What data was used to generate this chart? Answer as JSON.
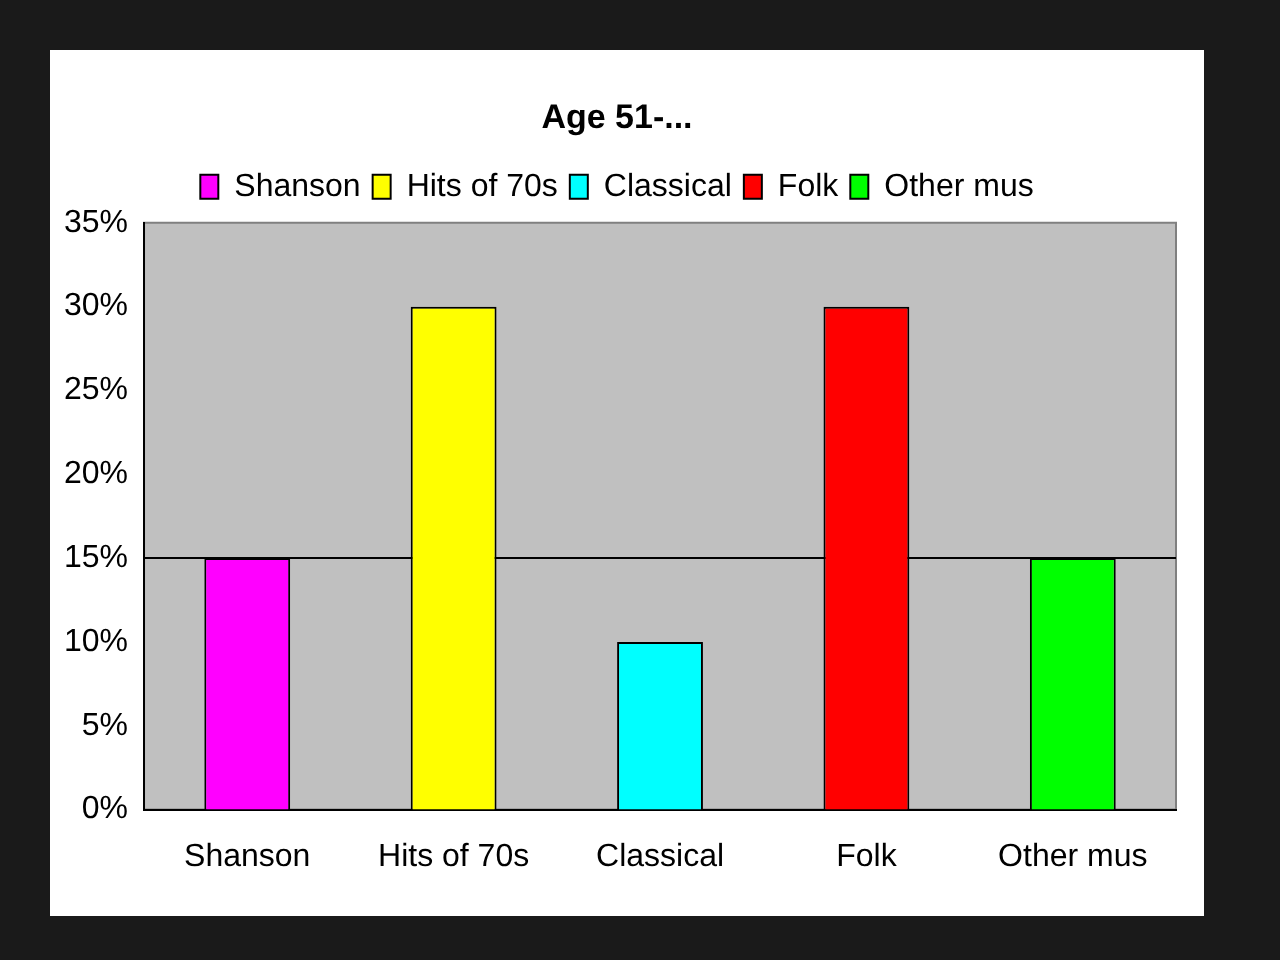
{
  "chart_data": {
    "type": "bar",
    "title": "Age 51-...",
    "categories": [
      "Shanson",
      "Hits of 70s",
      "Classical",
      "Folk",
      "Other mus"
    ],
    "series": [
      {
        "name": "Shanson",
        "color": "#ff00ff",
        "values": [
          15,
          null,
          null,
          null,
          null
        ]
      },
      {
        "name": "Hits of 70s",
        "color": "#ffff00",
        "values": [
          null,
          30,
          null,
          null,
          null
        ]
      },
      {
        "name": "Classical",
        "color": "#00ffff",
        "values": [
          null,
          null,
          10,
          null,
          null
        ]
      },
      {
        "name": "Folk",
        "color": "#ff0000",
        "values": [
          null,
          null,
          null,
          30,
          null
        ]
      },
      {
        "name": "Other mus",
        "color": "#00ff00",
        "values": [
          null,
          null,
          null,
          null,
          15
        ]
      }
    ],
    "ylim": [
      0,
      35
    ],
    "yticks": [
      {
        "value": 0,
        "label": "0%"
      },
      {
        "value": 5,
        "label": "5%"
      },
      {
        "value": 10,
        "label": "10%"
      },
      {
        "value": 15,
        "label": "15%"
      },
      {
        "value": 20,
        "label": "20%"
      },
      {
        "value": 25,
        "label": "25%"
      },
      {
        "value": 30,
        "label": "30%"
      },
      {
        "value": 35,
        "label": "35%"
      }
    ],
    "ref_lines": [
      {
        "axis": "y",
        "value": 15,
        "color": "#000000"
      }
    ],
    "grid": false,
    "legend": "top"
  }
}
